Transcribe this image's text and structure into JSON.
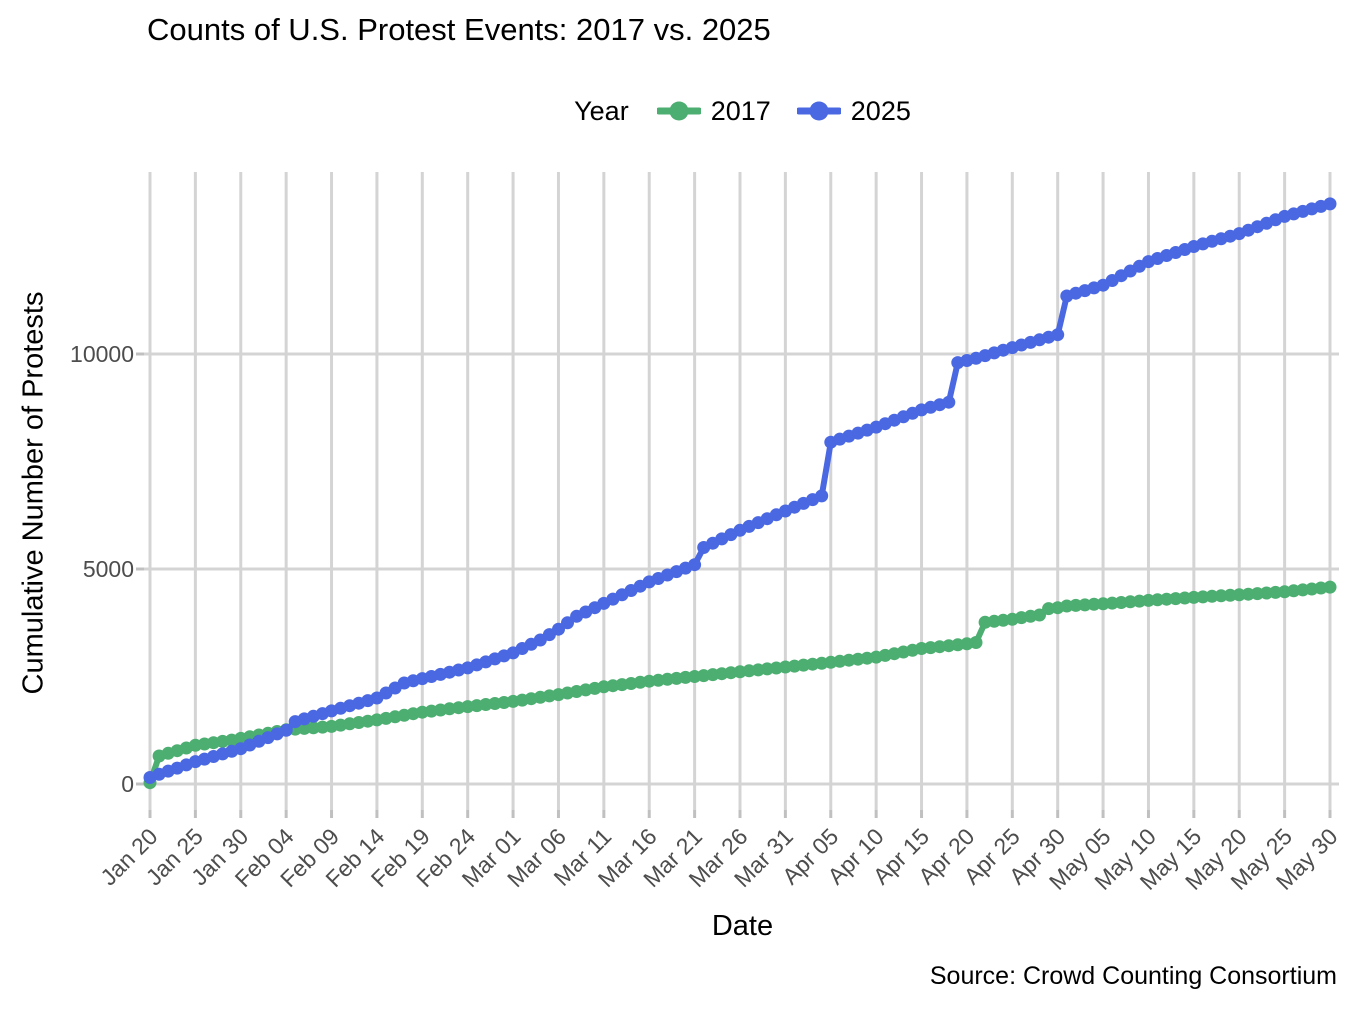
{
  "title": "Counts of U.S. Protest Events: 2017 vs. 2025",
  "caption": "Source: Crowd Counting Consortium",
  "legend": {
    "title": "Year",
    "items": [
      {
        "label": "2017",
        "color": "#4CAE70"
      },
      {
        "label": "2025",
        "color": "#4A68E1"
      }
    ]
  },
  "axes": {
    "x_title": "Date",
    "y_title": "Cumulative Number of Protests"
  },
  "colors": {
    "grid": "#d4d4d4",
    "tick_mark": "#c0c0c0",
    "axis_text": "#4d4d4d",
    "background": "#ffffff",
    "green_2017": "#4CAE70",
    "blue_2025": "#4A68E1"
  },
  "chart_data": {
    "type": "line",
    "title": "Counts of U.S. Protest Events: 2017 vs. 2025",
    "xlabel": "Date",
    "ylabel": "Cumulative Number of Protests",
    "x_start": "Jan 20",
    "x_end": "May 30",
    "x_step": "1 day",
    "x_tick_labels": [
      "Jan 20",
      "Jan 25",
      "Jan 30",
      "Feb 04",
      "Feb 09",
      "Feb 14",
      "Feb 19",
      "Feb 24",
      "Mar 01",
      "Mar 06",
      "Mar 11",
      "Mar 16",
      "Mar 21",
      "Mar 26",
      "Mar 31",
      "Apr 05",
      "Apr 10",
      "Apr 15",
      "Apr 20",
      "Apr 25",
      "Apr 30",
      "May 05",
      "May 10",
      "May 15",
      "May 20",
      "May 25",
      "May 30"
    ],
    "x_tick_every_n_days": 5,
    "y_ticks": [
      0,
      5000,
      10000
    ],
    "ylim": [
      0,
      14200
    ],
    "grid": true,
    "legend_position": "top",
    "series": [
      {
        "name": "2017",
        "color": "#4CAE70",
        "values": [
          30,
          650,
          713,
          775,
          838,
          900,
          930,
          960,
          990,
          1020,
          1060,
          1100,
          1140,
          1180,
          1220,
          1260,
          1276,
          1292,
          1308,
          1324,
          1340,
          1370,
          1400,
          1430,
          1460,
          1490,
          1526,
          1562,
          1598,
          1634,
          1670,
          1696,
          1722,
          1748,
          1774,
          1800,
          1824,
          1848,
          1872,
          1896,
          1920,
          1952,
          1984,
          2016,
          2048,
          2080,
          2116,
          2152,
          2188,
          2224,
          2260,
          2286,
          2312,
          2338,
          2364,
          2390,
          2412,
          2434,
          2456,
          2478,
          2500,
          2522,
          2544,
          2566,
          2588,
          2610,
          2632,
          2654,
          2676,
          2698,
          2720,
          2742,
          2764,
          2786,
          2808,
          2830,
          2854,
          2878,
          2902,
          2926,
          2950,
          2990,
          3030,
          3070,
          3110,
          3150,
          3172,
          3194,
          3216,
          3238,
          3260,
          3290,
          3760,
          3783,
          3807,
          3830,
          3870,
          3900,
          3930,
          4080,
          4100,
          4140,
          4153,
          4165,
          4178,
          4190,
          4206,
          4222,
          4238,
          4254,
          4270,
          4284,
          4298,
          4312,
          4326,
          4340,
          4352,
          4364,
          4376,
          4388,
          4400,
          4414,
          4428,
          4442,
          4456,
          4470,
          4492,
          4514,
          4536,
          4558,
          4580
        ]
      },
      {
        "name": "2025",
        "color": "#4A68E1",
        "values": [
          150,
          225,
          300,
          370,
          445,
          520,
          580,
          640,
          700,
          760,
          820,
          906,
          992,
          1078,
          1164,
          1250,
          1450,
          1513,
          1575,
          1638,
          1700,
          1760,
          1820,
          1880,
          1940,
          2000,
          2117,
          2233,
          2350,
          2400,
          2450,
          2500,
          2550,
          2600,
          2650,
          2700,
          2770,
          2840,
          2910,
          2980,
          3050,
          3150,
          3250,
          3350,
          3475,
          3600,
          3750,
          3900,
          4000,
          4100,
          4200,
          4300,
          4400,
          4500,
          4600,
          4700,
          4780,
          4860,
          4940,
          5020,
          5100,
          5500,
          5600,
          5700,
          5800,
          5900,
          5990,
          6080,
          6170,
          6260,
          6350,
          6438,
          6525,
          6613,
          6700,
          7950,
          8020,
          8090,
          8160,
          8230,
          8300,
          8380,
          8460,
          8540,
          8620,
          8700,
          8760,
          8820,
          8880,
          9800,
          9850,
          9900,
          9963,
          10025,
          10088,
          10150,
          10210,
          10270,
          10330,
          10390,
          10450,
          11350,
          11413,
          11475,
          11538,
          11600,
          11710,
          11820,
          11930,
          12040,
          12150,
          12220,
          12290,
          12360,
          12430,
          12500,
          12560,
          12620,
          12680,
          12740,
          12800,
          12880,
          12960,
          13040,
          13120,
          13200,
          13258,
          13316,
          13374,
          13432,
          13490
        ]
      }
    ]
  }
}
